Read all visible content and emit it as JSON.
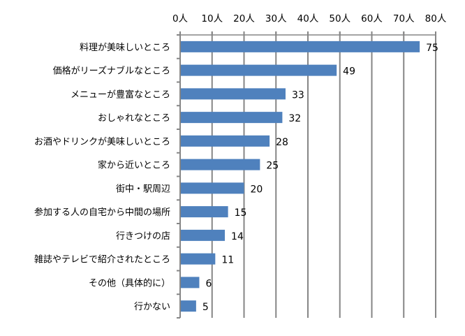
{
  "chart_data": {
    "type": "bar",
    "orientation": "horizontal",
    "title": "",
    "xlabel": "",
    "ylabel": "",
    "xlim": [
      0,
      80
    ],
    "x_ticks": [
      "0人",
      "10人",
      "20人",
      "30人",
      "40人",
      "50人",
      "60人",
      "70人",
      "80人"
    ],
    "x_axis_position": "top",
    "grid": true,
    "categories": [
      "料理が美味しいところ",
      "価格がリーズナブルなところ",
      "メニューが豊富なところ",
      "おしゃれなところ",
      "お酒やドリンクが美味しいところ",
      "家から近いところ",
      "街中・駅周辺",
      "参加する人の自宅から中間の場所",
      "行きつけの店",
      "雑誌やテレビで紹介されたところ",
      "その他（具体的に）",
      "行かない"
    ],
    "values": [
      75,
      49,
      33,
      32,
      28,
      25,
      20,
      15,
      14,
      11,
      6,
      5
    ],
    "bar_color": "#4f81bd",
    "grid_color": "#868686"
  }
}
